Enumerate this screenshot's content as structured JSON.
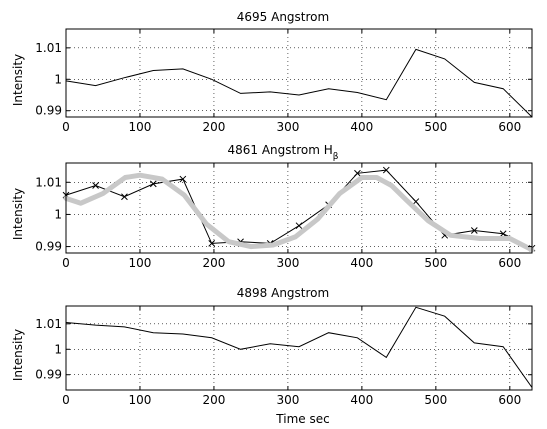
{
  "chart_data": [
    {
      "type": "line",
      "title": "4695 Angstrom",
      "title_sub": "",
      "xlabel": "",
      "ylabel": "Intensity",
      "xlim": [
        0,
        630
      ],
      "ylim": [
        0.988,
        1.016
      ],
      "xticks": [
        0,
        100,
        200,
        300,
        400,
        500,
        600
      ],
      "yticks": [
        0.99,
        1,
        1.01
      ],
      "ytick_labels": [
        "0.99",
        "1",
        "1.01"
      ],
      "grid": true,
      "series": [
        {
          "x": [
            0,
            40,
            79,
            118,
            158,
            197,
            236,
            276,
            315,
            355,
            394,
            433,
            473,
            512,
            552,
            591,
            630
          ],
          "y": [
            0.9995,
            0.998,
            1.0005,
            1.0028,
            1.0033,
            1.0,
            0.9955,
            0.996,
            0.995,
            0.997,
            0.9958,
            0.9935,
            1.0095,
            1.0065,
            0.999,
            0.997,
            0.988
          ],
          "markers": false
        }
      ]
    },
    {
      "type": "line",
      "title": "4861 Angstrom  H",
      "title_sub": "β",
      "xlabel": "",
      "ylabel": "Intensity",
      "xlim": [
        0,
        630
      ],
      "ylim": [
        0.988,
        1.016
      ],
      "xticks": [
        0,
        100,
        200,
        300,
        400,
        500,
        600
      ],
      "yticks": [
        0.99,
        1,
        1.01
      ],
      "ytick_labels": [
        "0.99",
        "1",
        "1.01"
      ],
      "grid": true,
      "series": [
        {
          "x": [
            0,
            40,
            79,
            118,
            158,
            197,
            236,
            276,
            315,
            355,
            394,
            433,
            473,
            512,
            552,
            591,
            630
          ],
          "y": [
            1.006,
            1.009,
            1.0055,
            1.0095,
            1.011,
            0.991,
            0.9915,
            0.991,
            0.9965,
            1.003,
            1.0128,
            1.0138,
            1.004,
            0.9935,
            0.995,
            0.994,
            0.9895
          ],
          "markers": true
        },
        {
          "x": [
            0,
            20,
            50,
            80,
            100,
            130,
            160,
            190,
            220,
            250,
            280,
            310,
            340,
            370,
            400,
            420,
            440,
            460,
            490,
            520,
            560,
            600,
            630
          ],
          "y": [
            1.005,
            1.0035,
            1.0065,
            1.0115,
            1.0122,
            1.011,
            1.006,
            0.997,
            0.9915,
            0.99,
            0.9905,
            0.993,
            0.9985,
            1.0065,
            1.0115,
            1.0115,
            1.009,
            1.0045,
            0.998,
            0.9935,
            0.9925,
            0.9925,
            0.989
          ],
          "markers": false,
          "style": "fit",
          "color": "#c8c8c8"
        }
      ]
    },
    {
      "type": "line",
      "title": "4898 Angstrom",
      "title_sub": "",
      "xlabel": "Time  sec",
      "ylabel": "Intensity",
      "xlim": [
        0,
        630
      ],
      "ylim": [
        0.984,
        1.017
      ],
      "xticks": [
        0,
        100,
        200,
        300,
        400,
        500,
        600
      ],
      "yticks": [
        0.99,
        1,
        1.01
      ],
      "ytick_labels": [
        "0.99",
        "1",
        "1.01"
      ],
      "grid": true,
      "series": [
        {
          "x": [
            0,
            40,
            79,
            118,
            158,
            197,
            236,
            276,
            315,
            355,
            394,
            433,
            473,
            512,
            552,
            591,
            630
          ],
          "y": [
            1.0105,
            1.0095,
            1.0088,
            1.0065,
            1.006,
            1.0045,
            1.0,
            1.0022,
            1.001,
            1.0065,
            1.0045,
            0.9968,
            1.0165,
            1.013,
            1.0025,
            1.001,
            0.985
          ],
          "markers": false
        }
      ]
    }
  ]
}
